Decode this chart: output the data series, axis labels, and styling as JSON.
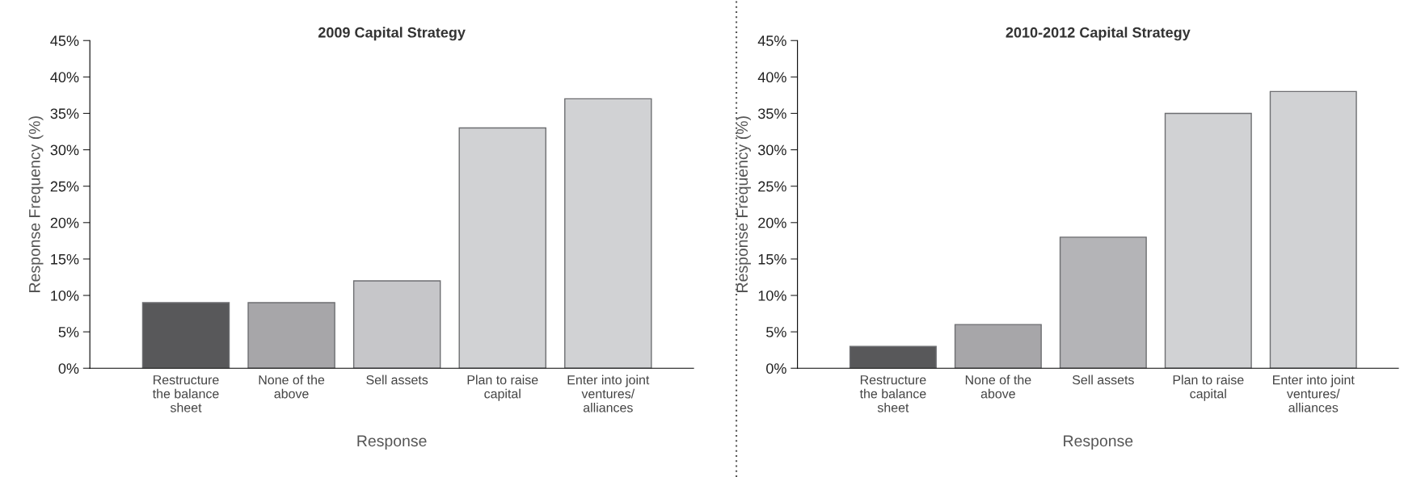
{
  "chart_data": [
    {
      "type": "bar",
      "title": "2009 Capital Strategy",
      "xlabel": "Response",
      "ylabel": "Response Frequency (%)",
      "categories": [
        "Restructure\nthe balance\nsheet",
        "None of the\nabove",
        "Sell assets",
        "Plan to raise\ncapital",
        "Enter into joint\nventures/\nalliances"
      ],
      "values": [
        9,
        9,
        12,
        33,
        37
      ],
      "colors": [
        "#58585a",
        "#a7a6a9",
        "#c6c6c9",
        "#d1d2d4",
        "#d1d2d4"
      ],
      "ylim": [
        0,
        45
      ],
      "yticks": [
        {
          "value": 0,
          "label": "0%"
        },
        {
          "value": 5,
          "label": "5%"
        },
        {
          "value": 10,
          "label": "10%"
        },
        {
          "value": 15,
          "label": "15%"
        },
        {
          "value": 20,
          "label": "20%"
        },
        {
          "value": 25,
          "label": "25%"
        },
        {
          "value": 30,
          "label": "30%"
        },
        {
          "value": 35,
          "label": "35%"
        },
        {
          "value": 40,
          "label": "40%"
        },
        {
          "value": 45,
          "label": "45%"
        }
      ],
      "grid": false,
      "legend": false
    },
    {
      "type": "bar",
      "title": "2010-2012 Capital Strategy",
      "xlabel": "Response",
      "ylabel": "Response Frequency (%)",
      "categories": [
        "Restructure\nthe balance\nsheet",
        "None of the\nabove",
        "Sell assets",
        "Plan to raise\ncapital",
        "Enter into joint\nventures/\nalliances"
      ],
      "values": [
        3,
        6,
        18,
        35,
        38
      ],
      "colors": [
        "#58585a",
        "#a7a6a9",
        "#b4b4b7",
        "#d1d2d4",
        "#d1d2d4"
      ],
      "ylim": [
        0,
        45
      ],
      "yticks": [
        {
          "value": 0,
          "label": "0%"
        },
        {
          "value": 5,
          "label": "5%"
        },
        {
          "value": 10,
          "label": "10%"
        },
        {
          "value": 15,
          "label": "15%"
        },
        {
          "value": 20,
          "label": "20%"
        },
        {
          "value": 25,
          "label": "25%"
        },
        {
          "value": 30,
          "label": "30%"
        },
        {
          "value": 35,
          "label": "35%"
        },
        {
          "value": 40,
          "label": "40%"
        },
        {
          "value": 45,
          "label": "45%"
        }
      ],
      "grid": false,
      "legend": false
    }
  ]
}
